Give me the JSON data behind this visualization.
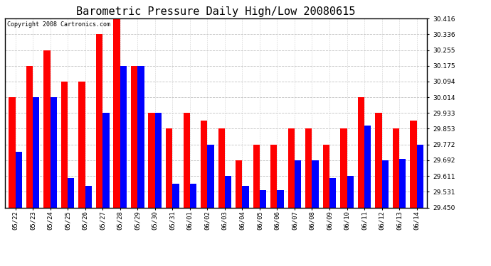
{
  "title": "Barometric Pressure Daily High/Low 20080615",
  "copyright": "Copyright 2008 Cartronics.com",
  "categories": [
    "05/22",
    "05/23",
    "05/24",
    "05/25",
    "05/26",
    "05/27",
    "05/28",
    "05/29",
    "05/30",
    "05/31",
    "06/01",
    "06/02",
    "06/03",
    "06/04",
    "06/05",
    "06/06",
    "06/07",
    "06/08",
    "06/09",
    "06/10",
    "06/11",
    "06/12",
    "06/13",
    "06/14"
  ],
  "highs": [
    30.014,
    30.175,
    30.255,
    30.094,
    30.094,
    30.336,
    30.416,
    30.175,
    29.933,
    29.853,
    29.933,
    29.893,
    29.853,
    29.692,
    29.772,
    29.772,
    29.853,
    29.853,
    29.772,
    29.853,
    30.014,
    29.933,
    29.853,
    29.893
  ],
  "lows": [
    29.733,
    30.014,
    30.014,
    29.6,
    29.56,
    29.933,
    30.175,
    30.175,
    29.933,
    29.57,
    29.57,
    29.77,
    29.61,
    29.56,
    29.54,
    29.54,
    29.692,
    29.692,
    29.6,
    29.61,
    29.87,
    29.692,
    29.7,
    29.772
  ],
  "high_color": "#ff0000",
  "low_color": "#0000ff",
  "background_color": "#ffffff",
  "plot_bg_color": "#ffffff",
  "grid_color": "#bbbbbb",
  "ylim_min": 29.45,
  "ylim_max": 30.416,
  "yticks": [
    29.45,
    29.531,
    29.611,
    29.692,
    29.772,
    29.853,
    29.933,
    30.014,
    30.094,
    30.175,
    30.255,
    30.336,
    30.416
  ],
  "bar_width": 0.38,
  "title_fontsize": 11,
  "tick_fontsize": 6.5,
  "copyright_fontsize": 6
}
